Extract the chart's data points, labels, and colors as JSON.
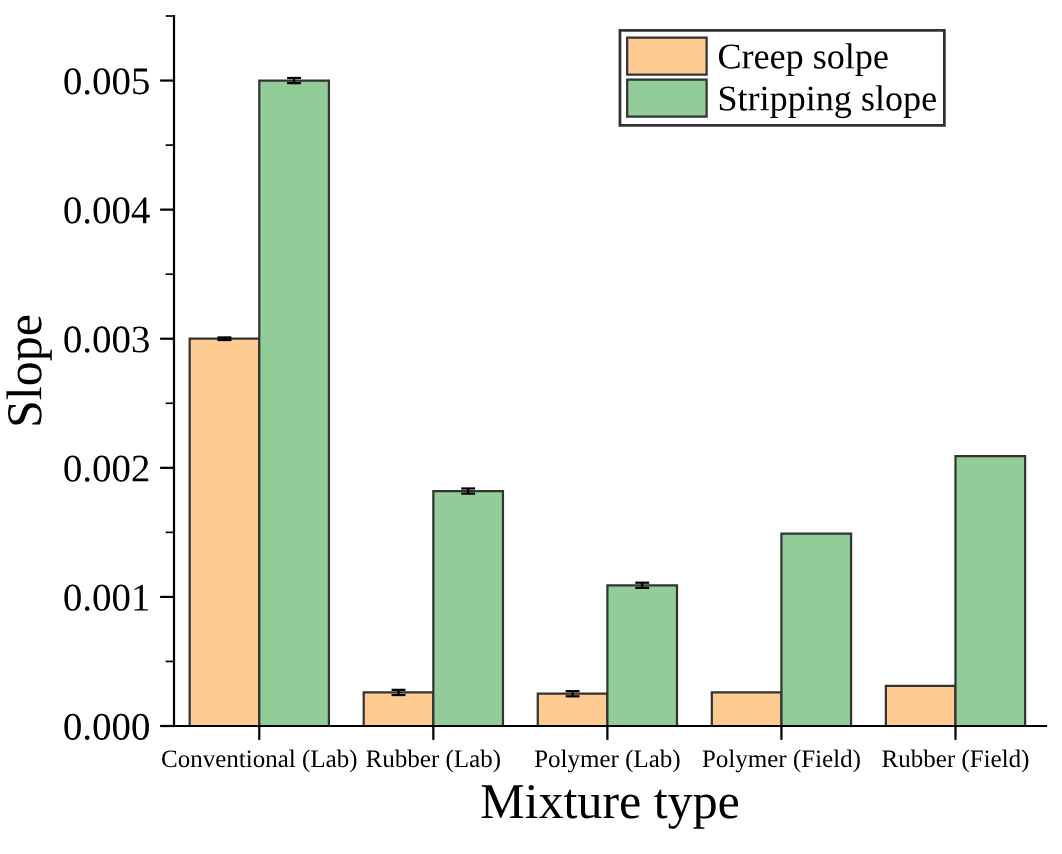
{
  "chart_data": {
    "type": "bar",
    "xlabel": "Mixture type",
    "ylabel": "Slope",
    "categories": [
      "Conventional (Lab)",
      "Rubber (Lab)",
      "Polymer (Lab)",
      "Polymer (Field)",
      "Rubber (Field)"
    ],
    "series": [
      {
        "name": "Creep solpe",
        "color": "#fecb93",
        "values": [
          0.003,
          0.00026,
          0.00025,
          0.00026,
          0.00031
        ],
        "errors": [
          1e-05,
          2e-05,
          2e-05,
          null,
          null
        ]
      },
      {
        "name": "Stripping slope",
        "color": "#92cc98",
        "values": [
          0.005,
          0.00182,
          0.00109,
          0.00149,
          0.00209
        ],
        "errors": [
          2e-05,
          2e-05,
          2e-05,
          null,
          null
        ]
      }
    ],
    "ylim": [
      0,
      0.0055
    ],
    "yticks": [
      {
        "value": 0,
        "label": "0.000"
      },
      0.001,
      0.002,
      0.003,
      0.004,
      0.005
    ],
    "grid": false,
    "legend": "top right"
  }
}
